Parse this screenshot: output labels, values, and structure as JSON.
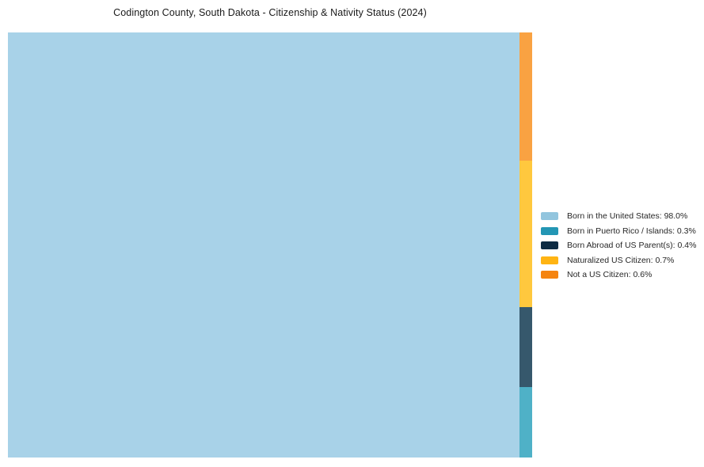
{
  "title": "Codington County, South Dakota - Citizenship & Nativity Status (2024)",
  "chart_data": {
    "type": "treemap",
    "title": "Codington County, South Dakota - Citizenship & Nativity Status (2024)",
    "categories": [
      "Born in the United States",
      "Born in Puerto Rico / Islands",
      "Born Abroad of US Parent(s)",
      "Naturalized US Citizen",
      "Not a US Citizen"
    ],
    "values": [
      98.0,
      0.3,
      0.4,
      0.7,
      0.6
    ],
    "units": "percent",
    "legend_position": "right-center",
    "layout_note": "Single large tile for 98% on left; remaining 2% stacked in a thin right column ordered top-to-bottom: Not a US Citizen, Naturalized US Citizen, Born Abroad of US Parent(s), Born in Puerto Rico / Islands",
    "tile_colors": {
      "born_us": "#A8D2E8",
      "puerto_rico": "#4FB1C7",
      "born_abroad": "#36586C",
      "naturalized": "#FFC83E",
      "not_citizen": "#F9A242"
    },
    "legend_colors": {
      "born_us": "#92C5DE",
      "puerto_rico": "#2396B4",
      "born_abroad": "#0D2B43",
      "naturalized": "#FFB413",
      "not_citizen": "#F58410"
    }
  },
  "legend": {
    "items": [
      {
        "label": "Born in the United States: 98.0%",
        "color": "#92C5DE"
      },
      {
        "label": "Born in Puerto Rico / Islands: 0.3%",
        "color": "#2396B4"
      },
      {
        "label": "Born Abroad of US Parent(s): 0.4%",
        "color": "#0D2B43"
      },
      {
        "label": "Naturalized US Citizen: 0.7%",
        "color": "#FFB413"
      },
      {
        "label": "Not a US Citizen: 0.6%",
        "color": "#F58410"
      }
    ]
  }
}
